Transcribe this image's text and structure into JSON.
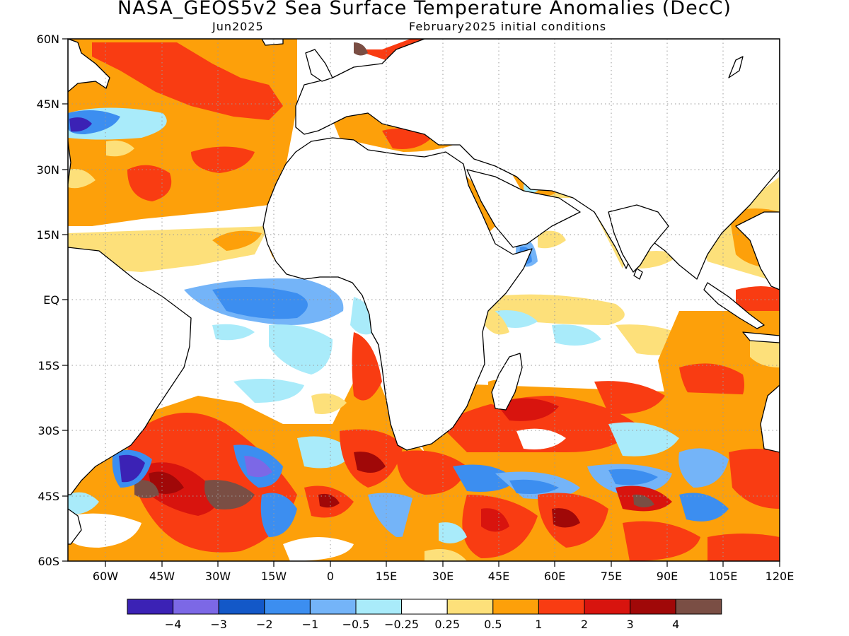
{
  "title": "NASA_GEOS5v2 Sea Surface Temperature Anomalies (DecC)",
  "subtitle_left": "Jun2025",
  "subtitle_right": "February2025 initial conditions",
  "map": {
    "lon_range": [
      "70W",
      "120E"
    ],
    "lat_range": [
      "60S",
      "60N"
    ],
    "y_labels": [
      "60N",
      "45N",
      "30N",
      "15N",
      "EQ",
      "15S",
      "30S",
      "45S",
      "60S"
    ],
    "x_labels": [
      "60W",
      "45W",
      "30W",
      "15W",
      "0",
      "15E",
      "30E",
      "45E",
      "60E",
      "75E",
      "90E",
      "105E",
      "120E"
    ],
    "grid": "dotted"
  },
  "colorbar": {
    "colors": [
      "#3b22b5",
      "#7c68e6",
      "#1358c8",
      "#3c8ef0",
      "#74b4f8",
      "#a9ebfa",
      "#ffffff",
      "#fde07a",
      "#fda00a",
      "#f93c12",
      "#d8140e",
      "#a00808",
      "#7a4e44"
    ],
    "labels": [
      "−4",
      "−3",
      "−2",
      "−1",
      "−0.5",
      "−0.25",
      "0.25",
      "0.5",
      "1",
      "2",
      "3",
      "4"
    ]
  }
}
